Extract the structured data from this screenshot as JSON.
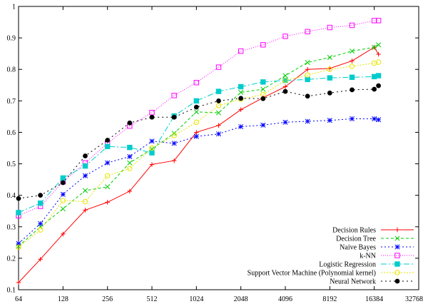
{
  "chart_data": {
    "type": "line",
    "title": "",
    "xlabel": "",
    "ylabel": "",
    "x_scale": "log2",
    "xlim": [
      64,
      32768
    ],
    "ylim": [
      0.1,
      1.0
    ],
    "x_ticks": [
      64,
      128,
      256,
      512,
      1024,
      2048,
      4096,
      8192,
      16384,
      32768
    ],
    "y_ticks": [
      0.1,
      0.2,
      0.3,
      0.4,
      0.5,
      0.6,
      0.7,
      0.8,
      0.9,
      1.0
    ],
    "x_tick_labels": [
      "64",
      "128",
      "256",
      "512",
      "1024",
      "2048",
      "4096",
      "8192",
      "16384",
      "32768"
    ],
    "y_tick_labels": [
      "0.1",
      "0.2",
      "0.3",
      "0.4",
      "0.5",
      "0.6",
      "0.7",
      "0.8",
      "0.9",
      "1"
    ],
    "x": [
      64,
      90,
      128,
      181,
      256,
      362,
      512,
      724,
      1024,
      1448,
      2048,
      2896,
      4096,
      5793,
      8192,
      11585,
      16384,
      17500
    ],
    "legend_position": "bottom-right",
    "grid": false,
    "series": [
      {
        "name": "Decision Rules",
        "color": "#ff0000",
        "dash": "",
        "marker": "plus",
        "values": [
          0.123,
          0.197,
          0.277,
          0.353,
          0.378,
          0.413,
          0.498,
          0.51,
          0.6,
          0.622,
          0.672,
          0.71,
          0.745,
          0.8,
          0.803,
          0.827,
          0.87,
          0.848
        ]
      },
      {
        "name": "Decision Tree",
        "color": "#00cc00",
        "dash": "4,3",
        "marker": "cross",
        "values": [
          0.238,
          0.3,
          0.357,
          0.415,
          0.427,
          0.503,
          0.547,
          0.597,
          0.665,
          0.662,
          0.727,
          0.737,
          0.78,
          0.822,
          0.838,
          0.858,
          0.87,
          0.878
        ]
      },
      {
        "name": "Naive Bayes",
        "color": "#0000ff",
        "dash": "2,3",
        "marker": "star",
        "values": [
          0.247,
          0.31,
          0.403,
          0.462,
          0.503,
          0.523,
          0.572,
          0.565,
          0.587,
          0.595,
          0.618,
          0.623,
          0.632,
          0.635,
          0.638,
          0.643,
          0.643,
          0.64
        ]
      },
      {
        "name": "k-NN",
        "color": "#ff00ff",
        "dash": "1,2",
        "marker": "box",
        "values": [
          0.335,
          0.365,
          0.443,
          0.503,
          0.565,
          0.62,
          0.663,
          0.717,
          0.758,
          0.807,
          0.858,
          0.878,
          0.905,
          0.92,
          0.933,
          0.94,
          0.955,
          0.955
        ]
      },
      {
        "name": "Logistic Regression",
        "color": "#00cccc",
        "dash": "8,3,2,3",
        "marker": "filled-box",
        "values": [
          0.345,
          0.375,
          0.455,
          0.493,
          0.555,
          0.552,
          0.535,
          0.652,
          0.7,
          0.73,
          0.745,
          0.76,
          0.765,
          0.768,
          0.773,
          0.775,
          0.777,
          0.78
        ]
      },
      {
        "name": "Support Vector Machine (Polynomial kernel)",
        "color": "#e6e600",
        "dash": "2,2",
        "marker": "circle",
        "values": [
          0.235,
          0.29,
          0.383,
          0.38,
          0.462,
          0.485,
          0.55,
          0.59,
          0.632,
          0.685,
          0.705,
          0.72,
          0.765,
          0.782,
          0.8,
          0.81,
          0.82,
          0.823
        ]
      },
      {
        "name": "Neural Network",
        "color": "#000000",
        "dash": "2,4",
        "marker": "filled-circle",
        "values": [
          0.39,
          0.4,
          0.44,
          0.525,
          0.575,
          0.63,
          0.648,
          0.648,
          0.68,
          0.7,
          0.708,
          0.707,
          0.73,
          0.715,
          0.725,
          0.735,
          0.737,
          0.748
        ]
      }
    ]
  }
}
